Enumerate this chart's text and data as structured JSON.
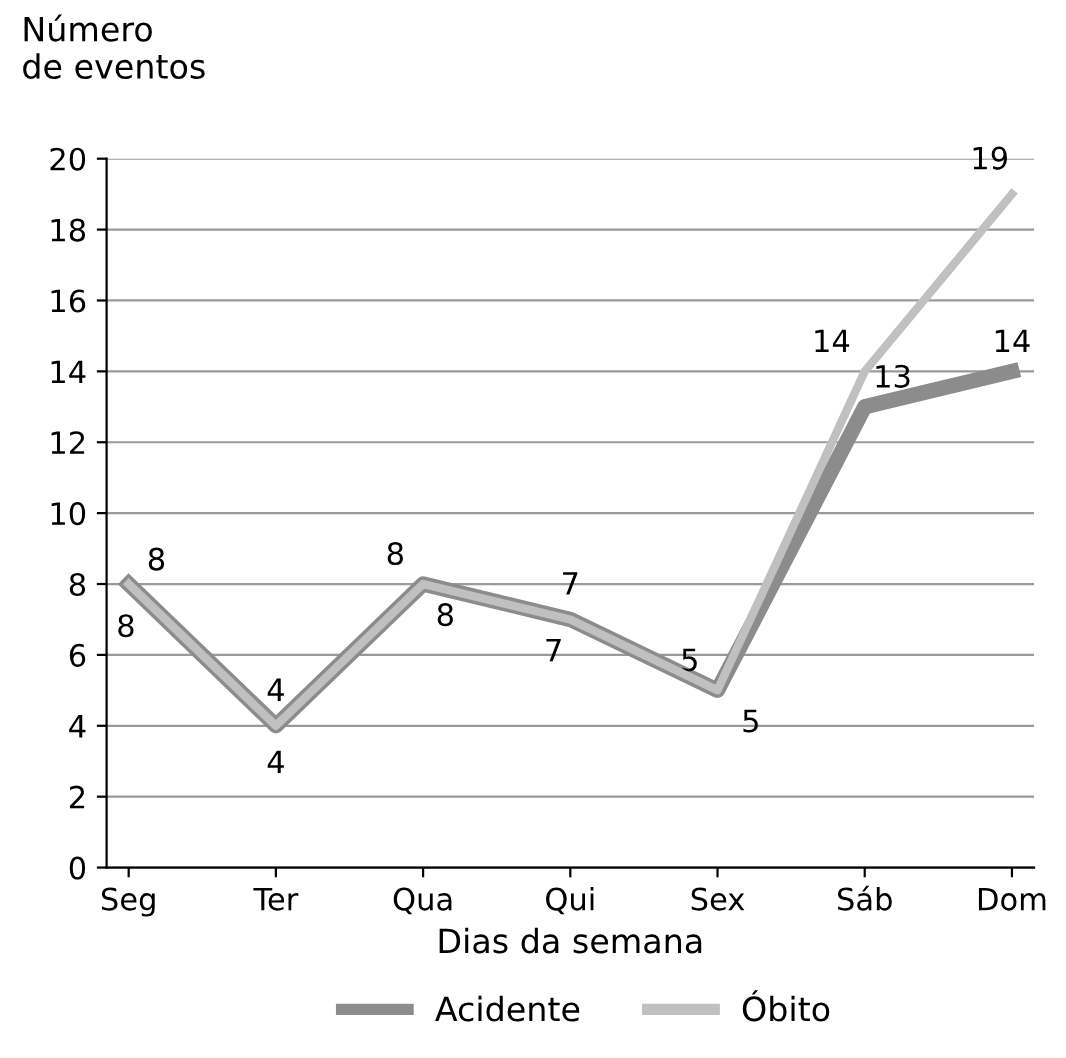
{
  "chart_data": {
    "type": "line",
    "xlabel": "Dias da semana",
    "ylabel": "Número\nde eventos",
    "categories": [
      "Seg",
      "Ter",
      "Qua",
      "Qui",
      "Sex",
      "Sáb",
      "Dom"
    ],
    "series": [
      {
        "name": "Acidente",
        "color": "#8c8c8c",
        "values": [
          8,
          4,
          8,
          7,
          5,
          13,
          14
        ]
      },
      {
        "name": "Óbito",
        "color": "#c0c0c0",
        "values": [
          8,
          4,
          8,
          7,
          5,
          14,
          19
        ]
      }
    ],
    "ylim": [
      0,
      20
    ],
    "yticks": [
      0,
      2,
      4,
      6,
      8,
      10,
      12,
      14,
      16,
      18,
      20
    ],
    "grid": "y",
    "legend": "bottom",
    "data_labels": true,
    "marker": "none",
    "line_style": "solid"
  }
}
